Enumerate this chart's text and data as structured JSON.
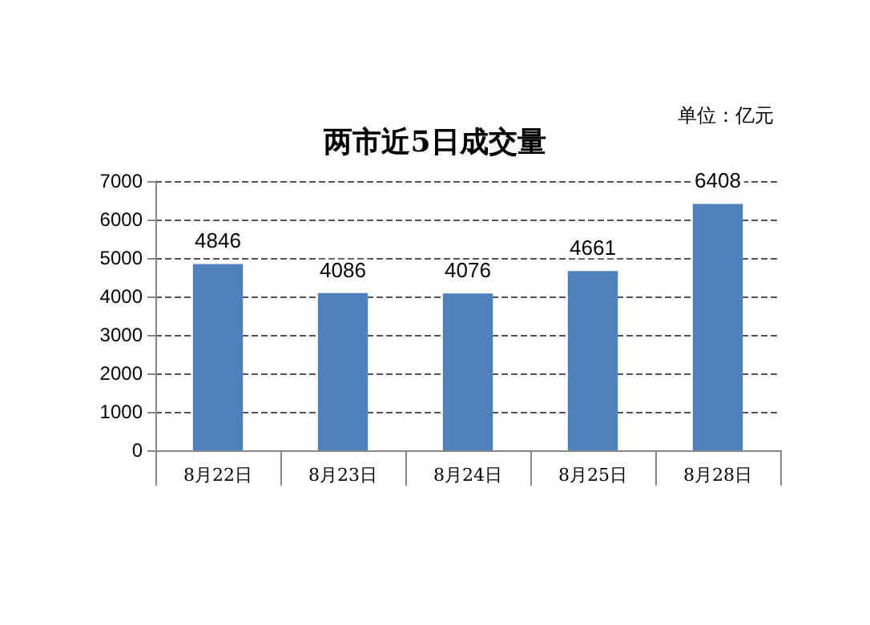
{
  "chart_data": {
    "type": "bar",
    "title": "两市近5日成交量",
    "annotations": [
      "单位：亿元"
    ],
    "categories": [
      "8月22日",
      "8月23日",
      "8月24日",
      "8月25日",
      "8月28日"
    ],
    "values": [
      4846,
      4086,
      4076,
      4661,
      6408
    ],
    "color": "#4f81bd",
    "ylim": [
      0,
      7000
    ],
    "yticks": [
      0,
      1000,
      2000,
      3000,
      4000,
      5000,
      6000,
      7000
    ],
    "grid": "y",
    "data_labels": true
  }
}
